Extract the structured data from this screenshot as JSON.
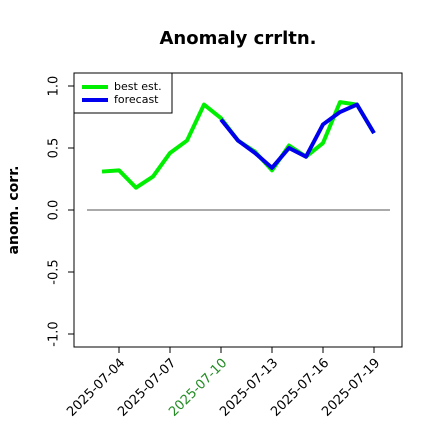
{
  "chart_data": {
    "type": "line",
    "title": "Anomaly crrltn.",
    "ylabel": "anom. corr.",
    "x": [
      "2025-07-03",
      "2025-07-04",
      "2025-07-05",
      "2025-07-06",
      "2025-07-07",
      "2025-07-08",
      "2025-07-09",
      "2025-07-10",
      "2025-07-11",
      "2025-07-12",
      "2025-07-13",
      "2025-07-14",
      "2025-07-15",
      "2025-07-16",
      "2025-07-17",
      "2025-07-18",
      "2025-07-19"
    ],
    "series": [
      {
        "name": "best est.",
        "color": "#00ee00",
        "values": [
          0.31,
          0.32,
          0.18,
          0.27,
          0.46,
          0.56,
          0.85,
          0.74,
          0.56,
          0.47,
          0.32,
          0.52,
          0.43,
          0.54,
          0.87,
          0.85,
          0.62
        ]
      },
      {
        "name": "forecast",
        "color": "#0000ee",
        "values": [
          null,
          null,
          null,
          null,
          null,
          null,
          null,
          0.73,
          0.56,
          0.46,
          0.34,
          0.5,
          0.43,
          0.69,
          0.79,
          0.85,
          0.62
        ]
      }
    ],
    "ylim": [
      -1.0,
      1.0
    ],
    "yticks": [
      {
        "value": -1.0,
        "label": "-1.0"
      },
      {
        "value": -0.5,
        "label": "-0.5"
      },
      {
        "value": 0.0,
        "label": "0.0"
      },
      {
        "value": 0.5,
        "label": "0.5"
      },
      {
        "value": 1.0,
        "label": "1.0"
      }
    ],
    "xticks": [
      "2025-07-04",
      "2025-07-07",
      "2025-07-10",
      "2025-07-13",
      "2025-07-16",
      "2025-07-19"
    ],
    "highlight_xtick": {
      "tick": "2025-07-10",
      "color": "#228b22"
    },
    "hline": 0,
    "legend": "top-left"
  }
}
